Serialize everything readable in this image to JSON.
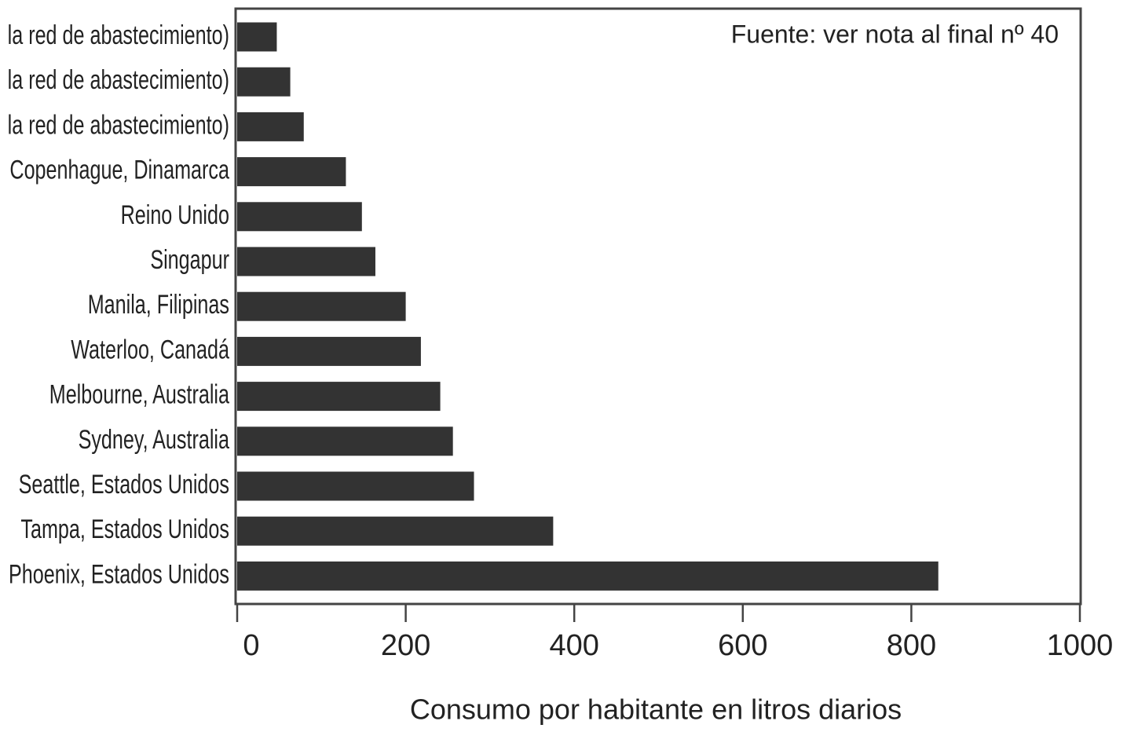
{
  "chart_data": {
    "type": "barh",
    "categories": [
      "la red de abastecimiento)",
      "la red de abastecimiento)",
      "la red de abastecimiento)",
      "Copenhague, Dinamarca",
      "Reino Unido",
      "Singapur",
      "Manila, Filipinas",
      "Waterloo, Canadá",
      "Melbourne, Australia",
      "Sydney, Australia",
      "Seattle, Estados Unidos",
      "Tampa, Estados Unidos",
      "Phoenix, Estados Unidos"
    ],
    "values": [
      47,
      63,
      79,
      129,
      148,
      164,
      200,
      218,
      241,
      256,
      281,
      375,
      832
    ],
    "color": "#333333",
    "xlim": [
      0,
      1000
    ],
    "xticks": [
      0,
      200,
      400,
      600,
      800,
      1000
    ],
    "xlabel": "Consumo por habitante en litros diarios",
    "annotation": "Fuente: ver nota al final nº 40"
  }
}
